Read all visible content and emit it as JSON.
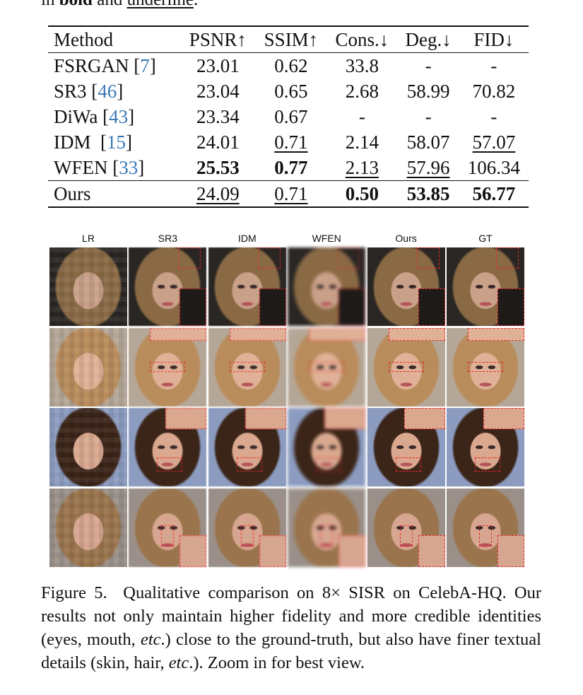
{
  "previous_text": {
    "prefix": "in ",
    "bold": "bold",
    "middle": " and ",
    "underline": "underline",
    "suffix": "."
  },
  "table": {
    "headers": [
      "Method",
      "PSNR↑",
      "SSIM↑",
      "Cons.↓",
      "Deg.↓",
      "FID↓"
    ],
    "rows": [
      {
        "method": "FSRGAN",
        "cite": "7",
        "sep": " ",
        "values": [
          "23.01",
          "0.62",
          "33.8",
          "-",
          "-"
        ],
        "styles": [
          "",
          "",
          "",
          "",
          ""
        ]
      },
      {
        "method": "SR3",
        "cite": "46",
        "sep": " ",
        "values": [
          "23.04",
          "0.65",
          "2.68",
          "58.99",
          "70.82"
        ],
        "styles": [
          "",
          "",
          "",
          "",
          ""
        ]
      },
      {
        "method": "DiWa",
        "cite": "43",
        "sep": " ",
        "values": [
          "23.34",
          "0.67",
          "-",
          "-",
          "-"
        ],
        "styles": [
          "",
          "",
          "",
          "",
          ""
        ]
      },
      {
        "method": "IDM",
        "cite": "15",
        "sep": "  ",
        "values": [
          "24.01",
          "0.71",
          "2.14",
          "58.07",
          "57.07"
        ],
        "styles": [
          "",
          "second",
          "",
          "",
          "second"
        ]
      },
      {
        "method": "WFEN",
        "cite": "33",
        "sep": " ",
        "values": [
          "25.53",
          "0.77",
          "2.13",
          "57.96",
          "106.34"
        ],
        "styles": [
          "best",
          "best",
          "second",
          "second",
          ""
        ]
      },
      {
        "method": "Ours",
        "cite": "",
        "sep": "",
        "values": [
          "24.09",
          "0.71",
          "0.50",
          "53.85",
          "56.77"
        ],
        "styles": [
          "second",
          "second",
          "best",
          "best",
          "best"
        ]
      }
    ]
  },
  "figure": {
    "columns": [
      "LR",
      "SR3",
      "IDM",
      "WFEN",
      "Ours",
      "GT"
    ],
    "rows": [
      {
        "subject": "woman with long brown-blonde hair, dark background",
        "inset": "hair region (bottom-right)",
        "bg": "#2a2623",
        "hair": "#8a6a45",
        "skin": "#c9a088"
      },
      {
        "subject": "woman with blonde hair, beige background",
        "inset": "eyes (top-right)",
        "bg": "#b5a797",
        "hair": "#b98c5c",
        "skin": "#e0b196"
      },
      {
        "subject": "smiling young man with brown hair, blue background",
        "inset": "mouth (top-right)",
        "bg": "#8c9cc0",
        "hair": "#3b2418",
        "skin": "#d9a88f"
      },
      {
        "subject": "woman with blonde hair, grey background",
        "inset": "nose (bottom-right)",
        "bg": "#9a9089",
        "hair": "#9a744c",
        "skin": "#d7a690"
      }
    ],
    "accent_color": "#e8262b"
  },
  "caption": {
    "label": "Figure 5.",
    "text_1": "Qualitative comparison on 8× SISR on CelebA-HQ. Our results not only maintain higher fidelity and more credible identities (eyes, mouth, ",
    "etc_1": "etc",
    "text_2": ".)  close to the ground-truth, but also have finer textual details (skin, hair, ",
    "etc_2": "etc",
    "text_3": ".). Zoom in for best view."
  }
}
